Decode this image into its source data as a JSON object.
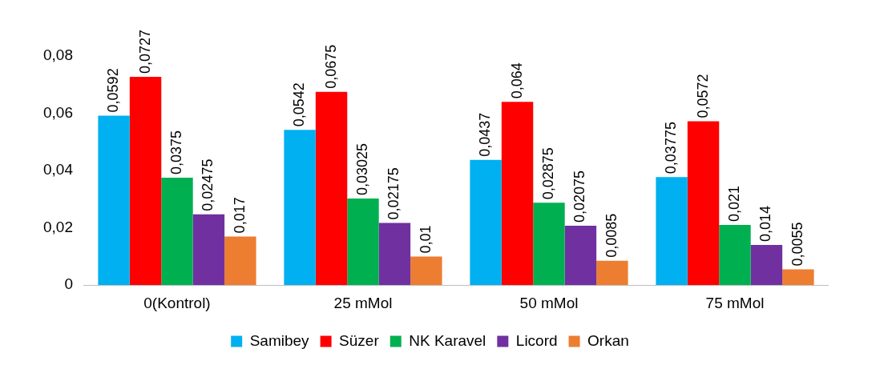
{
  "chart_data": {
    "type": "bar",
    "categories": [
      "0(Kontrol)",
      "25 mMol",
      "50 mMol",
      "75 mMol"
    ],
    "series": [
      {
        "name": "Samibey",
        "color": "#00b0f0",
        "values": [
          0.0592,
          0.0542,
          0.0437,
          0.03775
        ],
        "value_labels": [
          "0,0592",
          "0,0542",
          "0,0437",
          "0,03775"
        ]
      },
      {
        "name": "Süzer",
        "color": "#ff0000",
        "values": [
          0.0727,
          0.0675,
          0.064,
          0.0572
        ],
        "value_labels": [
          "0,0727",
          "0,0675",
          "0,064",
          "0,0572"
        ]
      },
      {
        "name": "NK Karavel",
        "color": "#00b050",
        "values": [
          0.0375,
          0.03025,
          0.02875,
          0.021
        ],
        "value_labels": [
          "0,0375",
          "0,03025",
          "0,02875",
          "0,021"
        ]
      },
      {
        "name": "Licord",
        "color": "#7030a0",
        "values": [
          0.02475,
          0.02175,
          0.02075,
          0.014
        ],
        "value_labels": [
          "0,02475",
          "0,02175",
          "0,02075",
          "0,014"
        ]
      },
      {
        "name": "Orkan",
        "color": "#ed7d31",
        "values": [
          0.017,
          0.01,
          0.0085,
          0.0055
        ],
        "value_labels": [
          "0,017",
          "0,01",
          "0,0085",
          "0,0055"
        ]
      }
    ],
    "ylim": [
      0,
      0.08
    ],
    "yticks": [
      {
        "value": 0,
        "label": "0"
      },
      {
        "value": 0.02,
        "label": "0,02"
      },
      {
        "value": 0.04,
        "label": "0,04"
      },
      {
        "value": 0.06,
        "label": "0,06"
      },
      {
        "value": 0.08,
        "label": "0,08"
      }
    ],
    "grid": false,
    "legend": "bottom"
  }
}
